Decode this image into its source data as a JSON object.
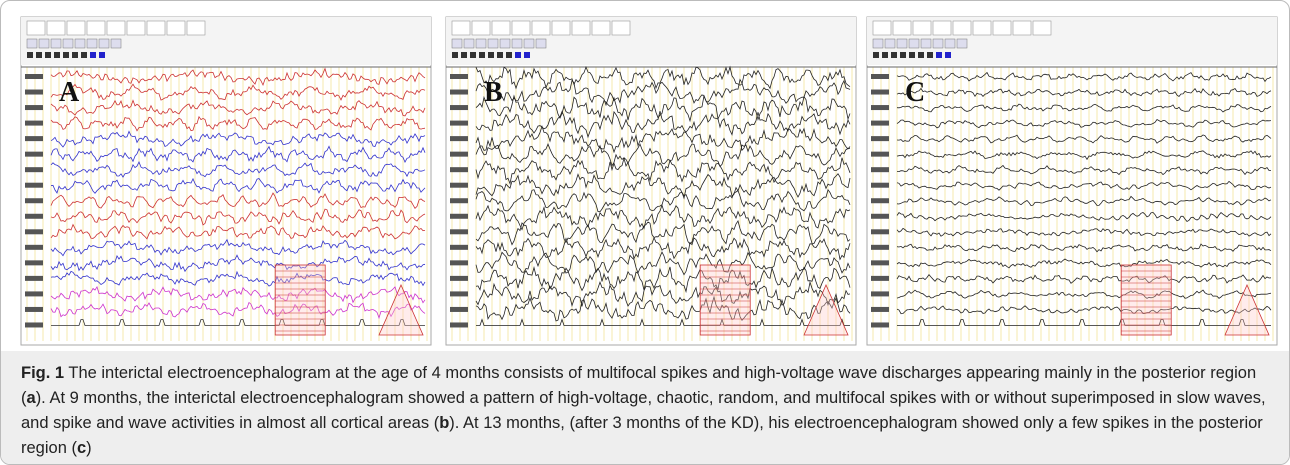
{
  "figure": {
    "panels": [
      {
        "label": "A",
        "colored": true
      },
      {
        "label": "B",
        "colored": false
      },
      {
        "label": "C",
        "colored": false
      }
    ]
  },
  "caption": {
    "segments": [
      {
        "text": "Fig. 1",
        "bold": true
      },
      {
        "text": " The interictal electroencephalogram at the age of 4 months consists of multifocal spikes and high-voltage wave discharges appearing mainly in the posterior region (",
        "bold": false
      },
      {
        "text": "a",
        "bold": true
      },
      {
        "text": "). At 9 months, the interictal electroencephalogram showed a pattern of high-voltage, chaotic, random, and multifocal spikes with or without superimposed in slow waves, and spike and wave activities in almost all cortical areas (",
        "bold": false
      },
      {
        "text": "b",
        "bold": true
      },
      {
        "text": "). At 13 months, (after 3 months of the KD), his electroencephalogram showed only a few spikes in the posterior region (",
        "bold": false
      },
      {
        "text": "c",
        "bold": true
      },
      {
        "text": ")",
        "bold": false
      }
    ]
  }
}
